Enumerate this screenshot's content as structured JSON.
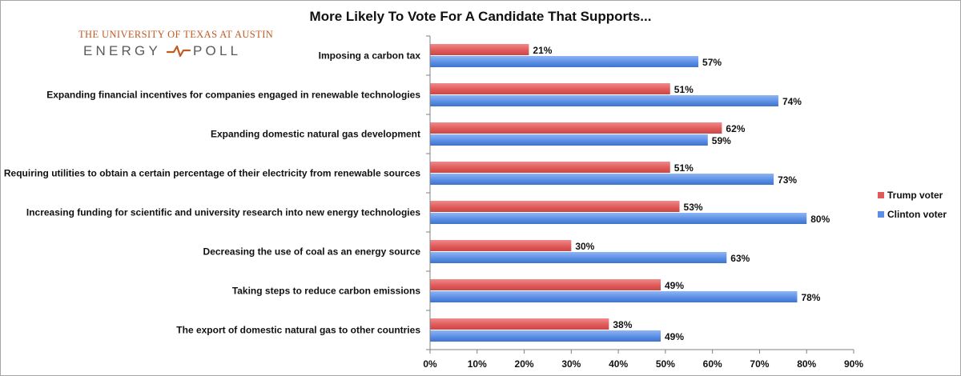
{
  "logo": {
    "top_text": "THE UNIVERSITY OF TEXAS AT AUSTIN",
    "left_text": "ENERGY",
    "right_text": "POLL"
  },
  "colors": {
    "trump": "#e15a5a",
    "clinton": "#5b8fe6",
    "logo_orange": "#c15a23",
    "axis": "#808080"
  },
  "chart_data": {
    "type": "bar",
    "orientation": "horizontal",
    "title": "More Likely To Vote For A Candidate That Supports...",
    "categories": [
      "Imposing a carbon tax",
      "Expanding financial incentives for companies engaged in renewable technologies",
      "Expanding domestic natural gas development",
      "Requiring utilities to obtain a certain percentage of their electricity from renewable sources",
      "Increasing funding for scientific and university research into new energy technologies",
      "Decreasing the use of coal as an energy source",
      "Taking steps to reduce carbon emissions",
      "The export of domestic natural gas to other countries"
    ],
    "series": [
      {
        "name": "Trump voter",
        "values": [
          21,
          51,
          62,
          51,
          53,
          30,
          49,
          38
        ],
        "labels": [
          "21%",
          "51%",
          "62%",
          "51%",
          "53%",
          "30%",
          "49%",
          "38%"
        ]
      },
      {
        "name": "Clinton voter",
        "values": [
          57,
          74,
          59,
          73,
          80,
          63,
          78,
          49
        ],
        "labels": [
          "57%",
          "74%",
          "59%",
          "73%",
          "80%",
          "63%",
          "78%",
          "49%"
        ]
      }
    ],
    "xlim": [
      0,
      90
    ],
    "xticks": [
      "0%",
      "10%",
      "20%",
      "30%",
      "40%",
      "50%",
      "60%",
      "70%",
      "80%",
      "90%"
    ],
    "xlabel": "",
    "ylabel": "",
    "grid": false,
    "legend": "right"
  }
}
